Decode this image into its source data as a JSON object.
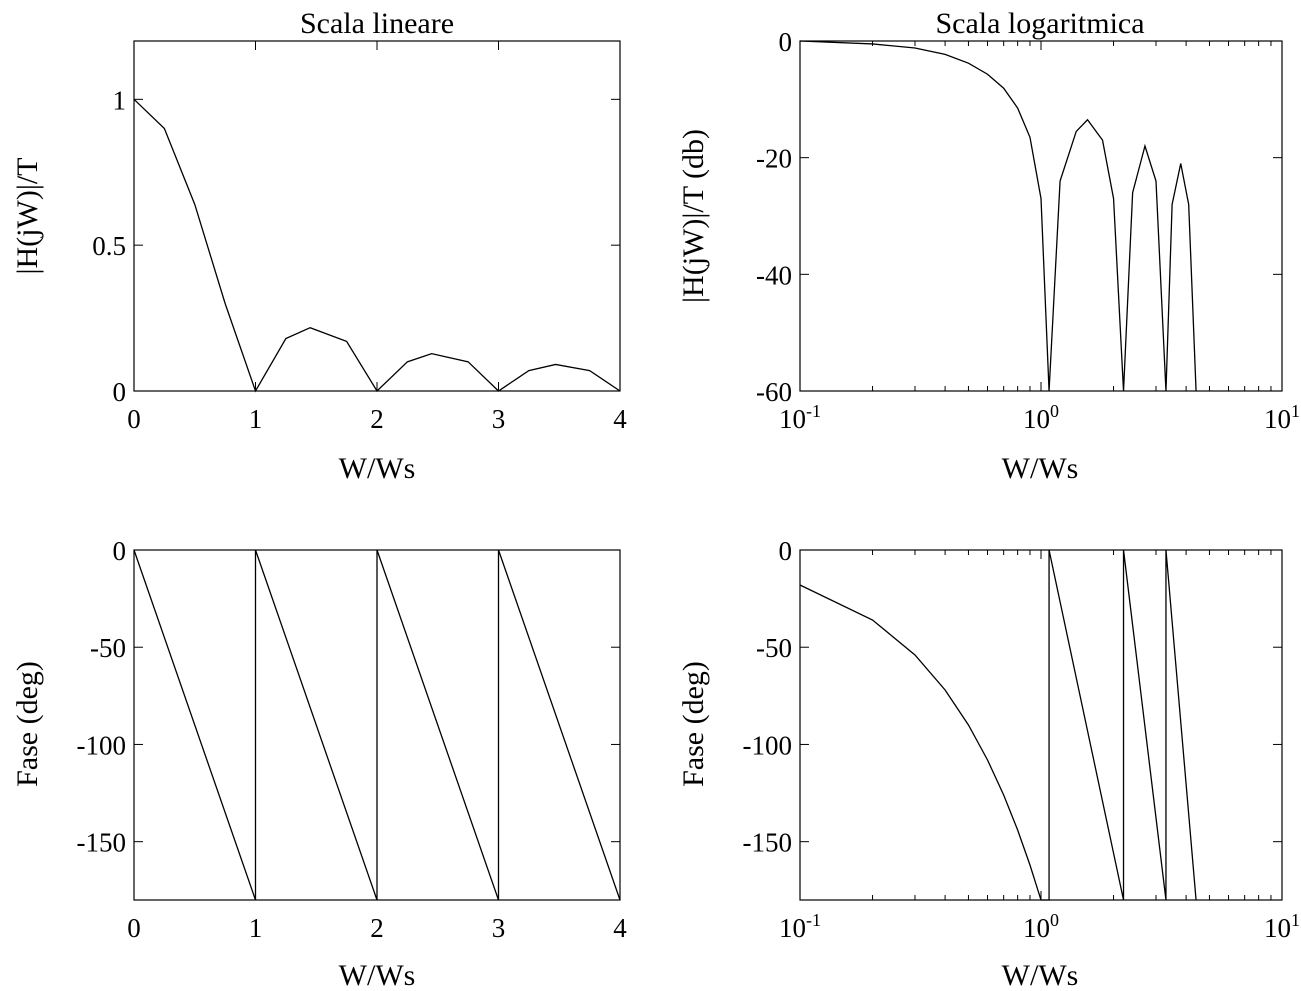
{
  "chart_data": [
    {
      "type": "line",
      "title": "Scala lineare",
      "xlabel": "W/Ws",
      "ylabel": "|H(jW)|/T",
      "xscale": "linear",
      "xlim": [
        0,
        4
      ],
      "ylim": [
        0,
        1.2
      ],
      "xticks": [
        "0",
        "1",
        "2",
        "3",
        "4"
      ],
      "yticks": [
        "0",
        "0.5",
        "1"
      ],
      "grid": false,
      "series": [
        {
          "x": [
            0,
            0.25,
            0.5,
            0.75,
            1,
            1.25,
            1.45,
            1.75,
            2,
            2.25,
            2.45,
            2.75,
            3,
            3.25,
            3.47,
            3.75,
            4
          ],
          "y": [
            1,
            0.9,
            0.64,
            0.3,
            0,
            0.18,
            0.217,
            0.17,
            0,
            0.1,
            0.128,
            0.1,
            0,
            0.07,
            0.091,
            0.07,
            0
          ]
        }
      ]
    },
    {
      "type": "line",
      "title": "Scala logaritmica",
      "xlabel": "W/Ws",
      "ylabel": "|H(jW)|/T  (db)",
      "xscale": "log",
      "xlim": [
        0.1,
        10
      ],
      "ylim": [
        -60,
        0
      ],
      "xticks": [
        {
          "base": "10",
          "exp": "-1"
        },
        {
          "base": "10",
          "exp": "0"
        },
        {
          "base": "10",
          "exp": "1"
        }
      ],
      "yticks": [
        "-60",
        "-40",
        "-20",
        "0"
      ],
      "grid": false,
      "series": [
        {
          "x": [
            0.1,
            0.2,
            0.3,
            0.4,
            0.5,
            0.6,
            0.7,
            0.8,
            0.9,
            1.0,
            1.08,
            1.2,
            1.4,
            1.56,
            1.8,
            2.0,
            2.2,
            2.4,
            2.7,
            3.0,
            3.3,
            3.5,
            3.8,
            4.1,
            4.4
          ],
          "y": [
            0,
            -0.5,
            -1.2,
            -2.3,
            -3.8,
            -5.7,
            -8.1,
            -11.5,
            -16.5,
            -27,
            -60,
            -24,
            -15.5,
            -13.5,
            -17,
            -27,
            -60,
            -26,
            -18,
            -24,
            -60,
            -28,
            -21,
            -28,
            -60
          ]
        }
      ]
    },
    {
      "type": "line",
      "title": "",
      "xlabel": "W/Ws",
      "ylabel": "Fase (deg)",
      "xscale": "linear",
      "xlim": [
        0,
        4
      ],
      "ylim": [
        -180,
        0
      ],
      "xticks": [
        "0",
        "1",
        "2",
        "3",
        "4"
      ],
      "yticks": [
        "-150",
        "-100",
        "-50",
        "0"
      ],
      "grid": false,
      "series": [
        {
          "x": [
            0,
            1,
            1,
            2,
            2,
            3,
            3,
            4
          ],
          "y": [
            0,
            -180,
            0,
            -180,
            0,
            -180,
            0,
            -180
          ]
        }
      ]
    },
    {
      "type": "line",
      "title": "",
      "xlabel": "W/Ws",
      "ylabel": "Fase (deg)",
      "xscale": "log",
      "xlim": [
        0.1,
        10
      ],
      "ylim": [
        -180,
        0
      ],
      "xticks": [
        {
          "base": "10",
          "exp": "-1"
        },
        {
          "base": "10",
          "exp": "0"
        },
        {
          "base": "10",
          "exp": "1"
        }
      ],
      "yticks": [
        "-150",
        "-100",
        "-50",
        "0"
      ],
      "grid": false,
      "series": [
        {
          "x": [
            0.1,
            0.2,
            0.3,
            0.4,
            0.5,
            0.6,
            0.7,
            0.8,
            0.9,
            1.0,
            1.08,
            1.08,
            2.2,
            2.2,
            3.3,
            3.3,
            4.4
          ],
          "y": [
            -18,
            -36,
            -54,
            -72,
            -90,
            -108,
            -126,
            -144,
            -162,
            -180,
            -180,
            0,
            -180,
            0,
            -180,
            0,
            -180
          ]
        }
      ]
    }
  ]
}
